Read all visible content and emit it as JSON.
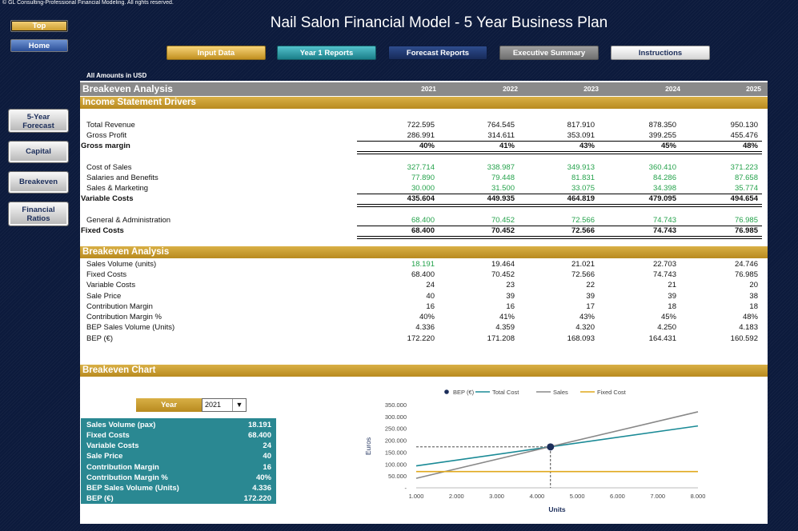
{
  "copyright": "© GL Consulting-Professional Financial Modeling. All rights reserved.",
  "title": "Nail Salon Financial Model - 5 Year Business Plan",
  "side_nav": {
    "top": "Top",
    "home": "Home",
    "forecast": "5-Year Forecast",
    "capital": "Capital",
    "breakeven": "Breakeven",
    "ratios": "Financial Ratios"
  },
  "top_nav": [
    "Input Data",
    "Year 1 Reports",
    "Forecast Reports",
    "Executive Summary",
    "Instructions"
  ],
  "amounts_note": "All Amounts in  USD",
  "header": {
    "title": "Breakeven Analysis",
    "years": [
      "2021",
      "2022",
      "2023",
      "2024",
      "2025"
    ]
  },
  "sections": {
    "drivers": "Income Statement Drivers",
    "breakeven": "Breakeven Analysis",
    "chart": "Breakeven Chart"
  },
  "drivers_rows": [
    {
      "label": "Total Revenue",
      "values": [
        "722.595",
        "764.545",
        "817.910",
        "878.350",
        "950.130"
      ]
    },
    {
      "label": "Gross Profit",
      "values": [
        "286.991",
        "314.611",
        "353.091",
        "399.255",
        "455.476"
      ]
    },
    {
      "label": "Gross margin",
      "values": [
        "40%",
        "41%",
        "43%",
        "45%",
        "48%"
      ]
    },
    {
      "label": "Cost of Sales",
      "values": [
        "327.714",
        "338.987",
        "349.913",
        "360.410",
        "371.223"
      ]
    },
    {
      "label": "Salaries and Benefits",
      "values": [
        "77.890",
        "79.448",
        "81.831",
        "84.286",
        "87.658"
      ]
    },
    {
      "label": "Sales & Marketing",
      "values": [
        "30.000",
        "31.500",
        "33.075",
        "34.398",
        "35.774"
      ]
    },
    {
      "label": "Variable Costs",
      "values": [
        "435.604",
        "449.935",
        "464.819",
        "479.095",
        "494.654"
      ]
    },
    {
      "label": "General & Administration",
      "values": [
        "68.400",
        "70.452",
        "72.566",
        "74.743",
        "76.985"
      ]
    },
    {
      "label": "Fixed Costs",
      "values": [
        "68.400",
        "70.452",
        "72.566",
        "74.743",
        "76.985"
      ]
    }
  ],
  "breakeven_rows": [
    {
      "label": "Sales Volume (units)",
      "values": [
        "18.191",
        "19.464",
        "21.021",
        "22.703",
        "24.746"
      ]
    },
    {
      "label": "Fixed Costs",
      "values": [
        "68.400",
        "70.452",
        "72.566",
        "74.743",
        "76.985"
      ]
    },
    {
      "label": "Variable Costs",
      "values": [
        "24",
        "23",
        "22",
        "21",
        "20"
      ]
    },
    {
      "label": "Sale Price",
      "values": [
        "40",
        "39",
        "39",
        "39",
        "38"
      ]
    },
    {
      "label": "Contribution Margin",
      "values": [
        "16",
        "16",
        "17",
        "18",
        "18"
      ]
    },
    {
      "label": "Contribution Margin %",
      "values": [
        "40%",
        "41%",
        "43%",
        "45%",
        "48%"
      ]
    },
    {
      "label": "BEP Sales Volume (Units)",
      "values": [
        "4.336",
        "4.359",
        "4.320",
        "4.250",
        "4.183"
      ]
    },
    {
      "label": "BEP (€)",
      "values": [
        "172.220",
        "171.208",
        "168.093",
        "164.431",
        "160.592"
      ]
    }
  ],
  "year_selector": {
    "label": "Year",
    "value": "2021"
  },
  "summary": [
    {
      "label": "Sales Volume (pax)",
      "value": "18.191"
    },
    {
      "label": "Fixed Costs",
      "value": "68.400"
    },
    {
      "label": "Variable Costs",
      "value": "24"
    },
    {
      "label": "Sale Price",
      "value": "40"
    },
    {
      "label": "Contribution Margin",
      "value": "16"
    },
    {
      "label": "Contribution Margin %",
      "value": "40%"
    },
    {
      "label": "BEP Sales Volume (Units)",
      "value": "4.336"
    },
    {
      "label": "BEP (€)",
      "value": "172.220"
    }
  ],
  "colors": {
    "green": "#24a24b",
    "gold": "#c99a2a",
    "teal": "#2a8892",
    "navy": "#0c1a3c"
  },
  "chart_data": {
    "type": "line",
    "xlabel": "Units",
    "ylabel": "Euros",
    "xlim": [
      1000,
      8000
    ],
    "ylim": [
      0,
      350000
    ],
    "x_ticks": [
      "1.000",
      "2.000",
      "3.000",
      "4.000",
      "5.000",
      "6.000",
      "7.000",
      "8.000"
    ],
    "y_ticks": [
      "-",
      "50.000",
      "100.000",
      "150.000",
      "200.000",
      "250.000",
      "300.000",
      "350.000"
    ],
    "legend": [
      "BEP (€)",
      "Total Cost",
      "Sales",
      "Fixed Cost"
    ],
    "legend_position": "top",
    "series": [
      {
        "name": "Total Cost",
        "color": "#1a8a96",
        "x": [
          1000,
          8000
        ],
        "y": [
          92400,
          260400
        ]
      },
      {
        "name": "Sales",
        "color": "#888888",
        "x": [
          1000,
          8000
        ],
        "y": [
          40000,
          320000
        ]
      },
      {
        "name": "Fixed Cost",
        "color": "#e0a81c",
        "x": [
          1000,
          8000
        ],
        "y": [
          68400,
          68400
        ]
      }
    ],
    "bep": {
      "name": "BEP (€)",
      "x": 4336,
      "y": 172220,
      "color": "#1b2d5a"
    }
  }
}
